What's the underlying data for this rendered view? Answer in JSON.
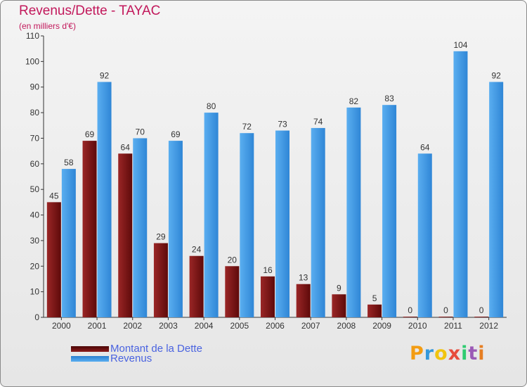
{
  "title": "Revenus/Dette - TAYAC",
  "subtitle": "(en milliers d'€)",
  "colors": {
    "dette": "#7a1616",
    "revenus": "#3d97e3",
    "axis_text": "#333333",
    "title": "#c2185b",
    "legend_text": "#4a63e0"
  },
  "legend": [
    {
      "label": "Montant de la Dette",
      "color": "#6b0f0f"
    },
    {
      "label": "Revenus",
      "color": "#3d97e3"
    }
  ],
  "chart_data": {
    "type": "bar",
    "title": "Revenus/Dette - TAYAC",
    "subtitle": "(en milliers d'€)",
    "categories": [
      "2000",
      "2001",
      "2002",
      "2003",
      "2004",
      "2005",
      "2006",
      "2007",
      "2008",
      "2009",
      "2010",
      "2011",
      "2012"
    ],
    "series": [
      {
        "name": "Montant de la Dette",
        "values": [
          45,
          69,
          64,
          29,
          24,
          20,
          16,
          13,
          9,
          5,
          0,
          0,
          0
        ]
      },
      {
        "name": "Revenus",
        "values": [
          58,
          92,
          70,
          69,
          80,
          72,
          73,
          74,
          82,
          83,
          64,
          104,
          92
        ]
      }
    ],
    "ylim": [
      0,
      110
    ],
    "yticks": [
      0,
      10,
      20,
      30,
      40,
      50,
      60,
      70,
      80,
      90,
      100,
      110
    ],
    "grid": false,
    "legend_position": "bottom-left"
  },
  "logo": {
    "text": "Proxiti",
    "letters": [
      "P",
      "r",
      "o",
      "x",
      "i",
      "t",
      "i"
    ],
    "colors": [
      "#f39c12",
      "#3498db",
      "#f1c40f",
      "#e74c3c",
      "#2ecc71",
      "#9b59b6",
      "#e67e22"
    ]
  }
}
